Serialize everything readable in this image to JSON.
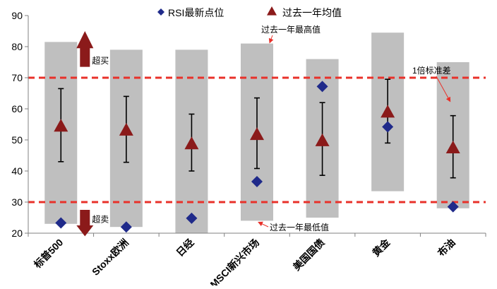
{
  "chart_data": {
    "type": "range-marker",
    "categories": [
      "标普500",
      "Stoxx欧洲",
      "日经",
      "MSCI新兴市场",
      "美国国债",
      "黄金",
      "布油"
    ],
    "ylim": [
      20,
      90
    ],
    "yticks": [
      20,
      30,
      40,
      50,
      60,
      70,
      80,
      90
    ],
    "ranges": {
      "name": "",
      "low": [
        23.0,
        22.0,
        20.0,
        24.0,
        25.0,
        33.5,
        28.0
      ],
      "high": [
        81.5,
        79.0,
        79.0,
        81.0,
        76.0,
        84.5,
        75.0
      ]
    },
    "series": [
      {
        "name": "RSI最新点位",
        "marker": "diamond",
        "color": "#1f2a8a",
        "values": [
          23.3,
          22.0,
          24.8,
          36.6,
          67.2,
          54.2,
          28.5
        ]
      },
      {
        "name": "过去一年均值",
        "marker": "triangle",
        "color": "#8b1a1a",
        "values": [
          54.5,
          53.2,
          48.8,
          51.8,
          49.8,
          59.0,
          47.5
        ]
      }
    ],
    "error_bars": {
      "low": [
        43.0,
        42.8,
        40.0,
        40.8,
        38.6,
        49.0,
        37.8
      ],
      "high": [
        66.5,
        64.0,
        58.3,
        63.5,
        62.0,
        69.5,
        57.8
      ]
    },
    "reference_lines": [
      {
        "value": 70,
        "color": "#e8312a"
      },
      {
        "value": 30,
        "color": "#e8312a"
      }
    ],
    "annotations": {
      "overbought": "超买",
      "oversold": "超卖",
      "max_label": "过去一年最高值",
      "min_label": "过去一年最低值",
      "sd_label": "1倍标准差"
    },
    "colors": {
      "range": "#bfbfbf",
      "arrow": "#8b1a1a",
      "pointer": "#e8312a",
      "axis": "#808080"
    },
    "legend_position": "top",
    "grid": false,
    "xlabel": "",
    "ylabel": ""
  }
}
